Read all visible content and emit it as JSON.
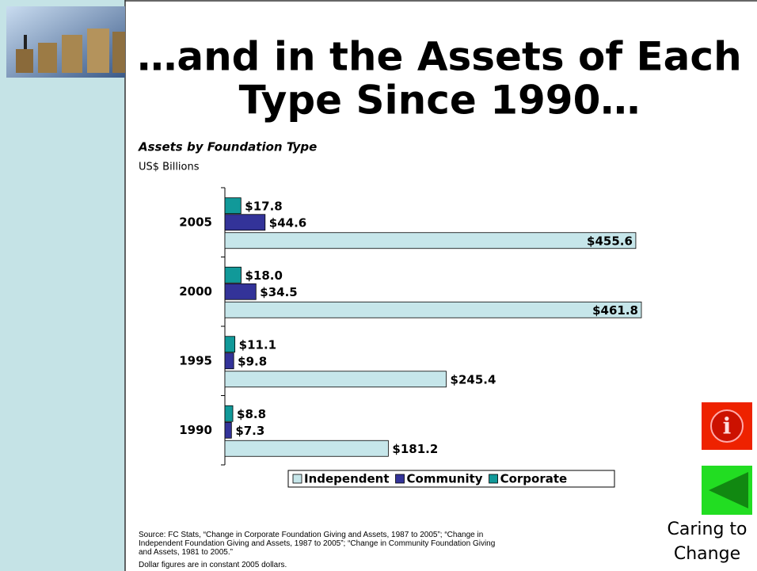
{
  "slide": {
    "title_lines": [
      "…and in the Assets of Each",
      "Type Since 1990…"
    ],
    "source_lines": [
      "Source:  FC Stats, “Change in Corporate Foundation Giving and Assets, 1987 to 2005”; “Change in",
      "Independent Foundation Giving and Assets, 1987 to 2005”; “Change in Community Foundation Giving",
      "and Assets, 1981 to 2005.”",
      "Dollar figures are in constant 2005 dollars."
    ],
    "brand_lines": [
      "Caring to",
      "Change"
    ]
  },
  "chart_data": {
    "type": "hbar",
    "title": "Assets by Foundation Type",
    "subtitle": "US$ Billions",
    "categories": [
      "2005",
      "2000",
      "1995",
      "1990"
    ],
    "series": [
      {
        "name": "Independent",
        "color": "#c6e6ea",
        "values": [
          455.6,
          461.8,
          245.4,
          181.2
        ],
        "value_labels": [
          "$455.6",
          "$461.8",
          "$245.4",
          "$181.2"
        ]
      },
      {
        "name": "Community",
        "color": "#333399",
        "values": [
          44.6,
          34.5,
          9.8,
          7.3
        ],
        "value_labels": [
          "$44.6",
          "$34.5",
          "$9.8",
          "$7.3"
        ]
      },
      {
        "name": "Corporate",
        "color": "#119999",
        "values": [
          17.8,
          18.0,
          11.1,
          8.8
        ],
        "value_labels": [
          "$17.8",
          "$18.0",
          "$11.1",
          "$8.8"
        ]
      }
    ]
  }
}
